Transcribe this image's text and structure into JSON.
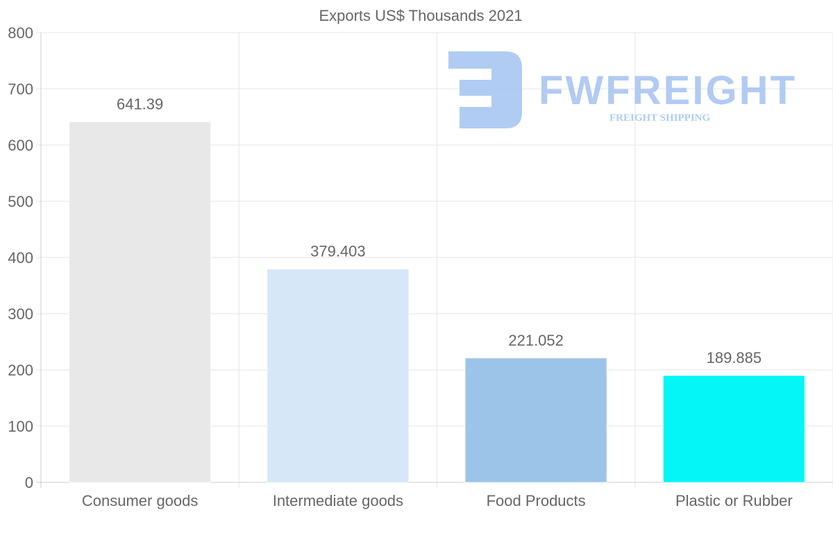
{
  "chart_data": {
    "type": "bar",
    "title": "Exports US$ Thousands 2021",
    "categories": [
      "Consumer goods",
      "Intermediate goods",
      "Food Products",
      "Plastic or Rubber"
    ],
    "values": [
      641.39,
      379.403,
      221.052,
      189.885
    ],
    "value_labels": [
      "641.39",
      "379.403",
      "221.052",
      "189.885"
    ],
    "colors": [
      "#e8e8e8",
      "#d6e7f8",
      "#9cc4e8",
      "#04f6f6"
    ],
    "xlabel": "",
    "ylabel": "",
    "ylim": [
      0,
      800
    ],
    "yticks": [
      0,
      100,
      200,
      300,
      400,
      500,
      600,
      700,
      800
    ],
    "grid": true,
    "legend": "none"
  },
  "watermark": {
    "brand": "FWFREIGHT",
    "tagline": "FREIGHT SHIPPING",
    "color": "#a9c6f2"
  }
}
